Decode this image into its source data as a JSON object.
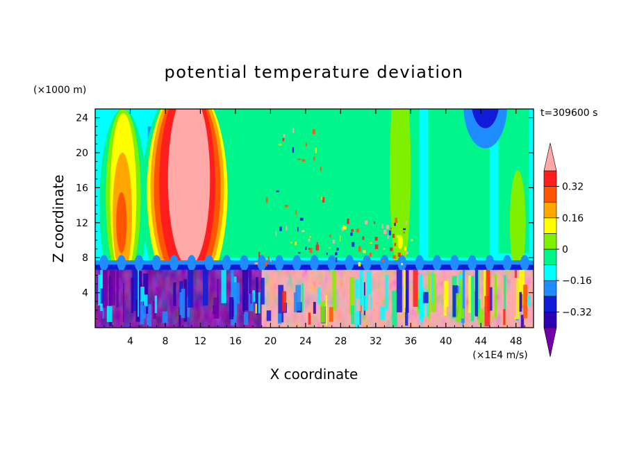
{
  "chart_data": {
    "type": "heatmap",
    "title": "potential temperature deviation",
    "xlabel": "X coordinate",
    "ylabel": "Z coordinate",
    "x_unit": "(×1E4 m/s)",
    "y_unit": "(×1000 m)",
    "time_label": "t=309600 s",
    "xlim": [
      0,
      50
    ],
    "ylim": [
      0,
      25
    ],
    "x_ticks": [
      4,
      8,
      12,
      16,
      20,
      24,
      28,
      32,
      36,
      40,
      44,
      48
    ],
    "y_ticks": [
      4,
      8,
      12,
      16,
      20,
      24
    ],
    "colorbar": {
      "levels": [
        -0.4,
        -0.32,
        -0.24,
        -0.16,
        -0.08,
        0,
        0.08,
        0.16,
        0.24,
        0.32,
        0.4
      ],
      "tick_labels": [
        "0.32",
        "0.16",
        "0",
        "−0.16",
        "−0.32"
      ],
      "tick_values": [
        0.32,
        0.16,
        0,
        -0.16,
        -0.32
      ],
      "colors": [
        "#7300a8",
        "#2c00b0",
        "#0f1bd6",
        "#1f8cff",
        "#00ffff",
        "#00f58a",
        "#7ff000",
        "#ffff00",
        "#ffa600",
        "#ff5500",
        "#ff1e1e",
        "#ffa8a8"
      ]
    }
  }
}
